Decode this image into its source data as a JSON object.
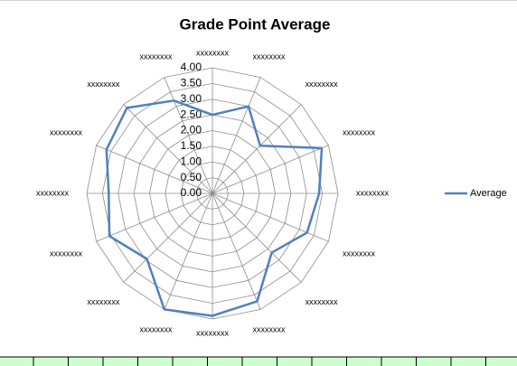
{
  "chart_data": {
    "type": "radar",
    "title": "Grade Point Average",
    "categories": [
      "xxxxxxxx",
      "xxxxxxxx",
      "xxxxxxxx",
      "xxxxxxxx",
      "xxxxxxxx",
      "xxxxxxxx",
      "xxxxxxxx",
      "xxxxxxxx",
      "xxxxxxxx",
      "xxxxxxxx",
      "xxxxxxxx",
      "xxxxxxxx",
      "xxxxxxxx",
      "xxxxxxxx",
      "xxxxxxxx",
      "xxxxxxxx"
    ],
    "series": [
      {
        "name": "Average",
        "color": "#4f81bd",
        "values": [
          2.5,
          3.0,
          2.15,
          3.77,
          3.4,
          3.26,
          2.67,
          3.72,
          3.9,
          4.0,
          2.95,
          3.55,
          3.3,
          3.65,
          3.85,
          3.2
        ]
      }
    ],
    "ylim": [
      0,
      4
    ],
    "yticks": [
      {
        "value": 0,
        "label": "0.00"
      },
      {
        "value": 0.5,
        "label": "0.50"
      },
      {
        "value": 1,
        "label": "1.00"
      },
      {
        "value": 1.5,
        "label": "1.50"
      },
      {
        "value": 2,
        "label": "2.00"
      },
      {
        "value": 2.5,
        "label": "2.50"
      },
      {
        "value": 3,
        "label": "3.00"
      },
      {
        "value": 3.5,
        "label": "3.50"
      },
      {
        "value": 4,
        "label": "4.00"
      }
    ],
    "grid": true,
    "legend": "right"
  }
}
